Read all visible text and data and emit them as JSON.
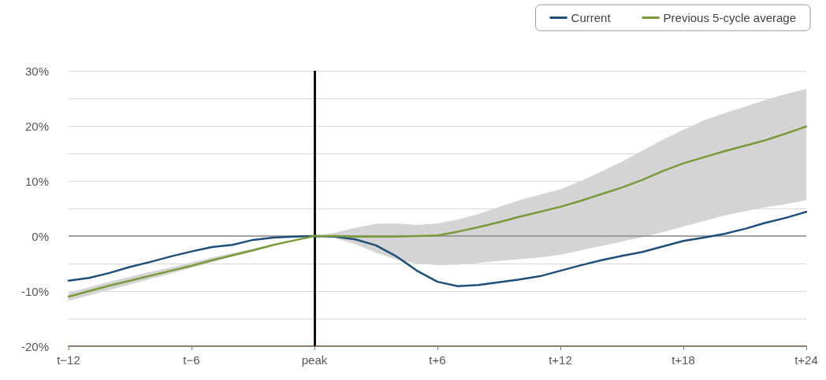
{
  "chart_data": {
    "type": "line",
    "categories": [
      "t−12",
      null,
      null,
      null,
      null,
      null,
      "t−6",
      null,
      null,
      null,
      null,
      null,
      "peak",
      null,
      null,
      null,
      null,
      null,
      "t+6",
      null,
      null,
      null,
      null,
      null,
      "t+12",
      null,
      null,
      null,
      null,
      null,
      "t+18",
      null,
      null,
      null,
      null,
      null,
      "t+24"
    ],
    "ylim": [
      -20,
      30
    ],
    "yticks": [
      {
        "value": -20,
        "label": "-20%"
      },
      {
        "value": -15,
        "label": null
      },
      {
        "value": -10,
        "label": "-10%"
      },
      {
        "value": -5,
        "label": null
      },
      {
        "value": 0,
        "label": "0%"
      },
      {
        "value": 5,
        "label": null
      },
      {
        "value": 10,
        "label": "10%"
      },
      {
        "value": 15,
        "label": null
      },
      {
        "value": 20,
        "label": "20%"
      },
      {
        "value": 25,
        "label": null
      },
      {
        "value": 30,
        "label": "30%"
      }
    ],
    "grid": "y",
    "legend": "top right",
    "marker": "none",
    "line_style": "solid",
    "ref_lines": [
      {
        "axis": "x",
        "value": "peak",
        "color": "#111111"
      },
      {
        "axis": "y",
        "value": 0,
        "color": "#8a8a8a"
      }
    ],
    "series": [
      {
        "name": "Current",
        "color": "#1f4e79",
        "values": [
          -8.1,
          -7.6,
          -6.7,
          -5.6,
          -4.7,
          -3.7,
          -2.8,
          -2.0,
          -1.6,
          -0.7,
          -0.3,
          -0.1,
          0,
          -0.1,
          -0.6,
          -1.7,
          -3.7,
          -6.3,
          -8.3,
          -9.1,
          -8.9,
          -8.4,
          -7.9,
          -7.3,
          -6.3,
          -5.3,
          -4.4,
          -3.6,
          -2.9,
          -1.9,
          -0.9,
          -0.3,
          0.4,
          1.3,
          2.4,
          3.3,
          4.4
        ]
      },
      {
        "name": "Previous 5-cycle average",
        "color": "#7a9a3a",
        "values": [
          -11,
          -10,
          -9,
          -8.1,
          -7.2,
          -6.3,
          -5.4,
          -4.4,
          -3.5,
          -2.6,
          -1.6,
          -0.8,
          0,
          0,
          -0.1,
          -0.1,
          -0.1,
          0,
          0.1,
          0.8,
          1.6,
          2.5,
          3.5,
          4.4,
          5.3,
          6.4,
          7.6,
          8.8,
          10.2,
          11.8,
          13.2,
          14.3,
          15.4,
          16.4,
          17.4,
          18.6,
          19.9
        ],
        "lower": [
          -11.8,
          -10.8,
          -9.8,
          -8.8,
          -7.8,
          -6.8,
          -5.8,
          -4.8,
          -3.7,
          -2.7,
          -1.7,
          -0.8,
          0,
          -0.4,
          -1.5,
          -3,
          -4.3,
          -5,
          -5.3,
          -5.2,
          -4.9,
          -4.5,
          -4.2,
          -3.9,
          -3.4,
          -2.6,
          -1.8,
          -1.0,
          -0.2,
          0.7,
          1.7,
          2.7,
          3.7,
          4.5,
          5.2,
          5.8,
          6.5
        ],
        "upper": [
          -10.3,
          -9.3,
          -8.3,
          -7.4,
          -6.5,
          -5.7,
          -4.8,
          -3.9,
          -3.1,
          -2.3,
          -1.5,
          -0.7,
          0,
          0.6,
          1.5,
          2.2,
          2.3,
          2.0,
          2.3,
          3.0,
          4.0,
          5.3,
          6.5,
          7.5,
          8.5,
          10,
          11.7,
          13.5,
          15.5,
          17.5,
          19.3,
          21,
          22.3,
          23.5,
          24.7,
          25.8,
          26.7
        ]
      }
    ]
  }
}
